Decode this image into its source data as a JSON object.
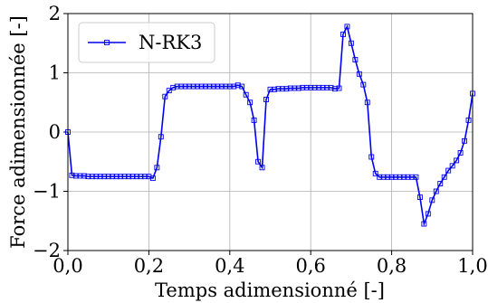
{
  "chart_data": {
    "type": "line",
    "x_label": "Temps adimensionné [-]",
    "y_label": "Force adimensionnée [-]",
    "x": [
      0,
      0.01,
      0.02,
      0.03,
      0.04,
      0.05,
      0.06,
      0.07,
      0.08,
      0.09,
      0.1,
      0.11,
      0.12,
      0.13,
      0.14,
      0.15,
      0.16,
      0.17,
      0.18,
      0.19,
      0.2,
      0.21,
      0.22,
      0.23,
      0.24,
      0.25,
      0.26,
      0.27,
      0.28,
      0.29,
      0.3,
      0.31,
      0.32,
      0.33,
      0.34,
      0.35,
      0.36,
      0.37,
      0.38,
      0.39,
      0.4,
      0.41,
      0.42,
      0.43,
      0.44,
      0.45,
      0.46,
      0.47,
      0.48,
      0.49,
      0.5,
      0.51,
      0.52,
      0.53,
      0.54,
      0.55,
      0.56,
      0.57,
      0.58,
      0.59,
      0.6,
      0.61,
      0.62,
      0.63,
      0.64,
      0.65,
      0.66,
      0.67,
      0.68,
      0.69,
      0.7,
      0.71,
      0.72,
      0.73,
      0.74,
      0.75,
      0.76,
      0.77,
      0.78,
      0.79,
      0.8,
      0.81,
      0.82,
      0.83,
      0.84,
      0.85,
      0.86,
      0.87,
      0.88,
      0.89,
      0.9,
      0.91,
      0.92,
      0.93,
      0.94,
      0.95,
      0.96,
      0.97,
      0.98,
      0.99,
      1
    ],
    "series": [
      {
        "name": "N-RK3",
        "color": "#0000ee",
        "values": [
          0,
          -0.73,
          -0.74,
          -0.74,
          -0.74,
          -0.75,
          -0.75,
          -0.75,
          -0.75,
          -0.75,
          -0.75,
          -0.75,
          -0.75,
          -0.75,
          -0.75,
          -0.75,
          -0.75,
          -0.75,
          -0.75,
          -0.75,
          -0.75,
          -0.78,
          -0.6,
          -0.08,
          0.6,
          0.7,
          0.75,
          0.77,
          0.77,
          0.77,
          0.77,
          0.77,
          0.77,
          0.77,
          0.77,
          0.77,
          0.77,
          0.77,
          0.77,
          0.77,
          0.77,
          0.77,
          0.79,
          0.77,
          0.63,
          0.5,
          0.2,
          -0.5,
          -0.6,
          0.55,
          0.72,
          0.72,
          0.73,
          0.73,
          0.73,
          0.74,
          0.74,
          0.74,
          0.75,
          0.75,
          0.75,
          0.75,
          0.75,
          0.75,
          0.75,
          0.75,
          0.73,
          0.74,
          1.65,
          1.78,
          1.5,
          1.22,
          0.98,
          0.8,
          0.5,
          -0.42,
          -0.7,
          -0.76,
          -0.76,
          -0.76,
          -0.76,
          -0.76,
          -0.76,
          -0.76,
          -0.76,
          -0.76,
          -0.76,
          -1.1,
          -1.55,
          -1.38,
          -1.15,
          -1,
          -0.87,
          -0.76,
          -0.65,
          -0.57,
          -0.48,
          -0.35,
          -0.15,
          0.2,
          0.65
        ]
      }
    ],
    "xlim": [
      0,
      1
    ],
    "ylim": [
      -2,
      2
    ],
    "xticks": [
      {
        "value": 0,
        "label": "0,0"
      },
      {
        "value": 0.2,
        "label": "0,2"
      },
      {
        "value": 0.4,
        "label": "0,4"
      },
      {
        "value": 0.6,
        "label": "0,6"
      },
      {
        "value": 0.8,
        "label": "0,8"
      },
      {
        "value": 1,
        "label": "1,0"
      }
    ],
    "yticks": [
      {
        "value": -2,
        "label": "−2"
      },
      {
        "value": -1,
        "label": "−1"
      },
      0,
      1,
      2
    ],
    "grid": true,
    "legend": "upper left",
    "marker": "square"
  }
}
